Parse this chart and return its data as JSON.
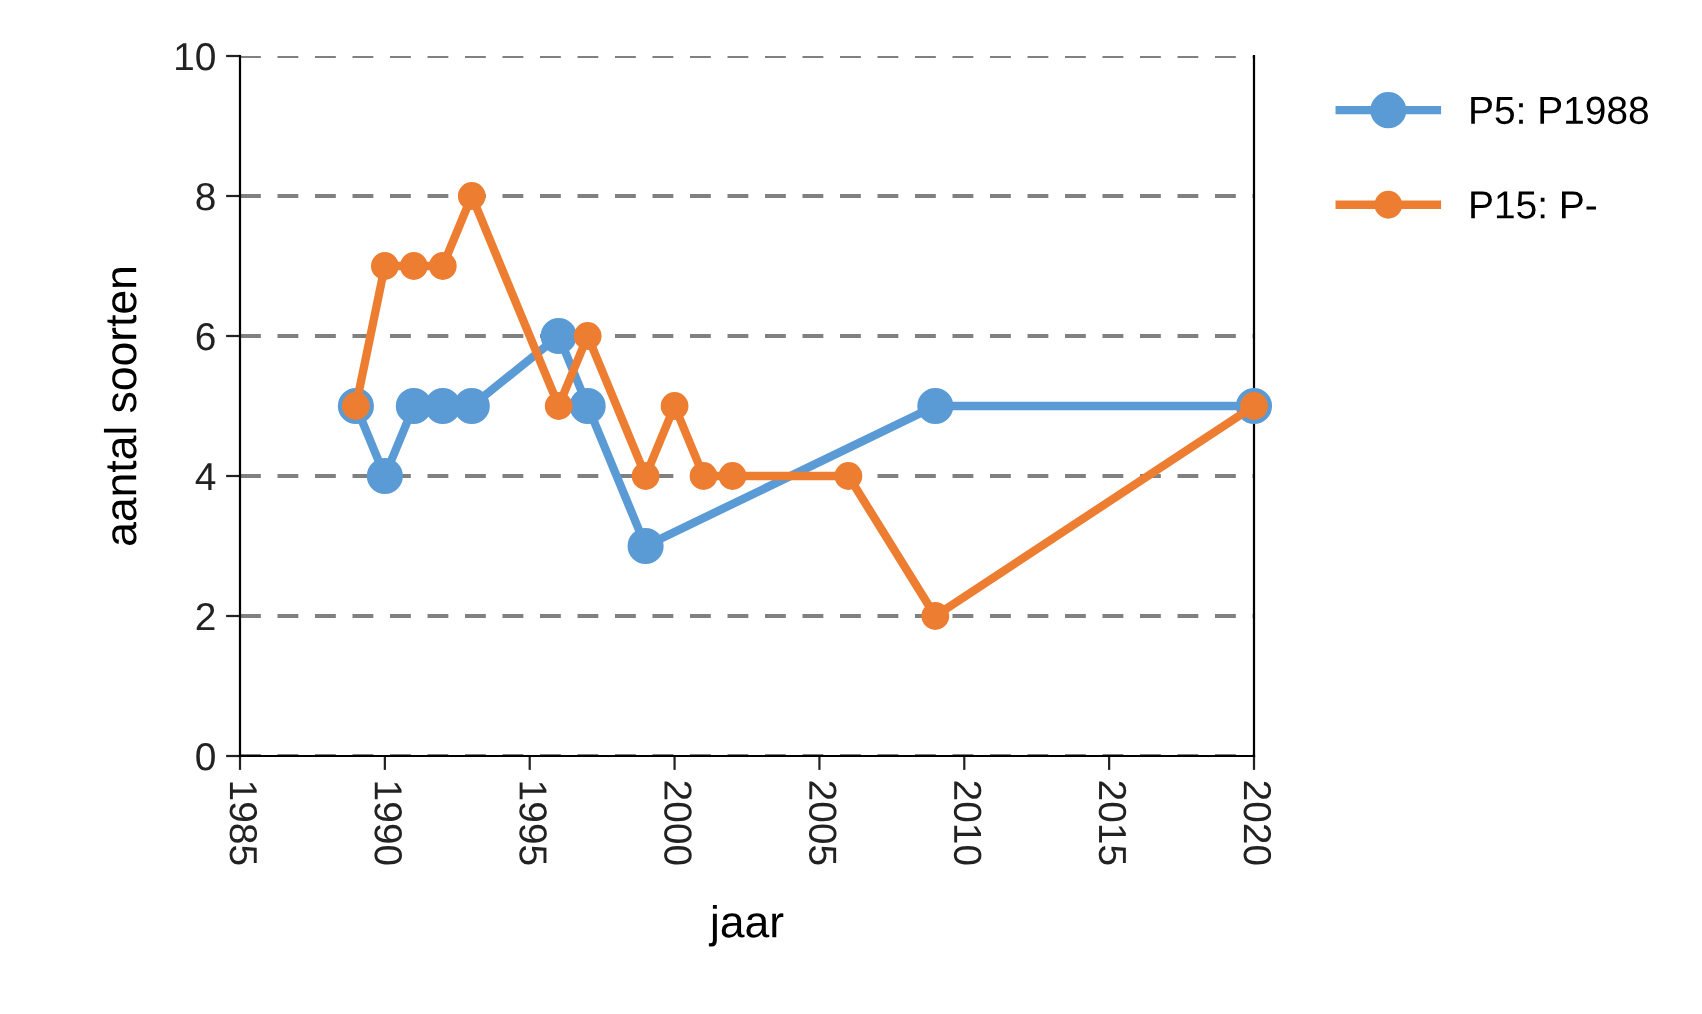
{
  "chart_data": {
    "type": "line",
    "xlabel": "jaar",
    "ylabel": "aantal soorten",
    "xlim": [
      1985,
      2020
    ],
    "xticks": [
      1985,
      1990,
      1995,
      2000,
      2005,
      2010,
      2015,
      2020
    ],
    "ylim": [
      0,
      10
    ],
    "yticks": [
      0,
      2,
      4,
      6,
      8,
      10
    ],
    "grid": "y",
    "legend": "right",
    "marker": "circle",
    "line_style": "solid",
    "series": [
      {
        "name": "P5: P1988",
        "color": "#5b9bd5",
        "x": [
          1989,
          1990,
          1991,
          1992,
          1993,
          1996,
          1997,
          1999,
          2009,
          2020
        ],
        "values": [
          5,
          4,
          5,
          5,
          5,
          6,
          5,
          3,
          5,
          5
        ]
      },
      {
        "name": "P15: P-",
        "color": "#ed7d31",
        "x": [
          1989,
          1990,
          1991,
          1992,
          1993,
          1996,
          1997,
          1999,
          2000,
          2001,
          2002,
          2006,
          2009,
          2020
        ],
        "values": [
          5,
          7,
          7,
          7,
          8,
          5,
          6,
          4,
          5,
          4,
          4,
          4,
          2,
          5
        ]
      }
    ]
  }
}
